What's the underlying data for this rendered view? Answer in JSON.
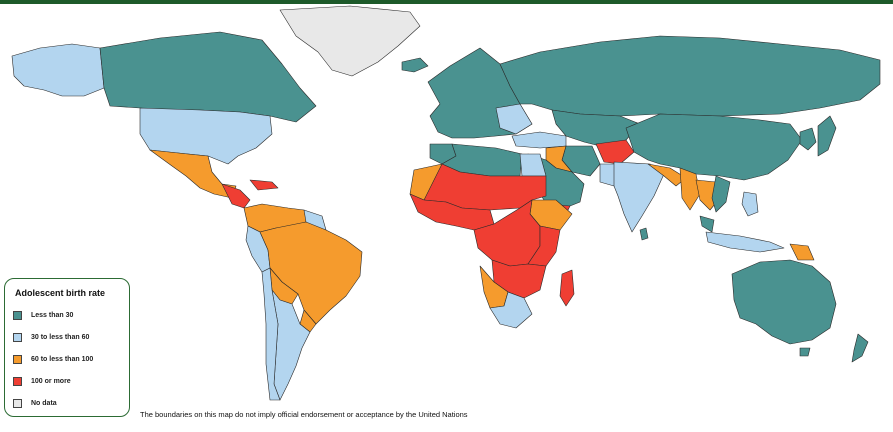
{
  "legend": {
    "title": "Adolescent birth rate",
    "items": [
      {
        "label": "Less than 30",
        "color": "#4a9290"
      },
      {
        "label": "30 to less than 60",
        "color": "#b3d5ef"
      },
      {
        "label": "60 to less than 100",
        "color": "#f59b2d"
      },
      {
        "label": "100 or more",
        "color": "#ef3e33"
      },
      {
        "label": "No data",
        "color": "#e8e8e8"
      }
    ]
  },
  "disclaimer": "The boundaries on this map do not imply official endorsement or acceptance by the United Nations",
  "colors": {
    "teal": "#4a9290",
    "light_blue": "#b3d5ef",
    "orange": "#f59b2d",
    "red": "#ef3e33",
    "grey": "#e8e8e8",
    "border": "#2c6b34"
  }
}
